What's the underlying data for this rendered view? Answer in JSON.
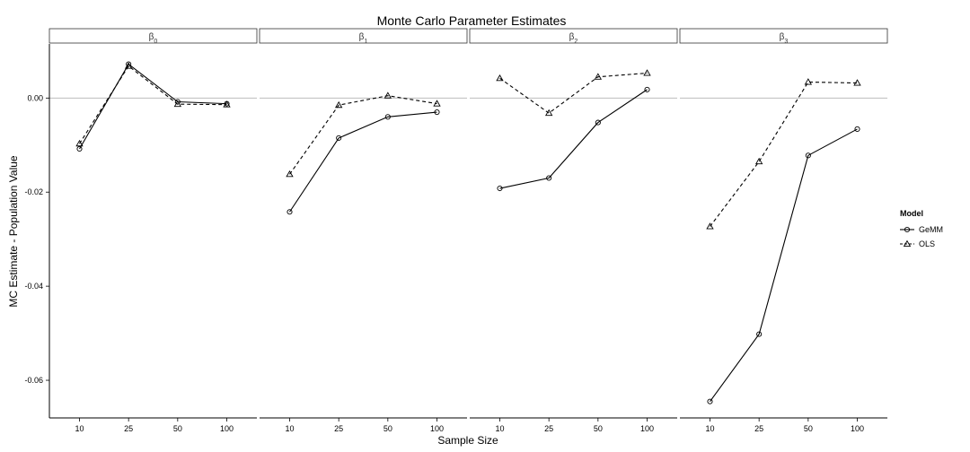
{
  "chart_data": {
    "type": "line",
    "title": "Monte Carlo Parameter Estimates",
    "xlabel": "Sample Size",
    "ylabel": "MC Estimate - Population Value",
    "categories": [
      "10",
      "25",
      "50",
      "100"
    ],
    "ylim": [
      -0.068,
      0.0115
    ],
    "yticks": [
      0.0,
      -0.02,
      -0.04,
      -0.06
    ],
    "ytick_labels": [
      "0.00",
      "-0.02",
      "-0.04",
      "-0.06"
    ],
    "reference_line": 0.0,
    "legend": {
      "title": "Model",
      "position": "right"
    },
    "series_styles": [
      {
        "name": "GeMM",
        "dash": "none",
        "marker": "circle"
      },
      {
        "name": "OLS",
        "dash": "4,3",
        "marker": "triangle"
      }
    ],
    "panels": [
      {
        "label": "β",
        "sub": "0",
        "series": [
          {
            "name": "GeMM",
            "values": [
              -0.0108,
              0.0072,
              -0.0008,
              -0.0012
            ]
          },
          {
            "name": "OLS",
            "values": [
              -0.0097,
              0.0068,
              -0.0013,
              -0.0014
            ]
          }
        ]
      },
      {
        "label": "β",
        "sub": "1",
        "series": [
          {
            "name": "GeMM",
            "values": [
              -0.0242,
              -0.0085,
              -0.004,
              -0.003
            ]
          },
          {
            "name": "OLS",
            "values": [
              -0.0162,
              -0.0015,
              0.0005,
              -0.0012
            ]
          }
        ]
      },
      {
        "label": "β",
        "sub": "2",
        "series": [
          {
            "name": "GeMM",
            "values": [
              -0.0192,
              -0.017,
              -0.0052,
              0.0018
            ]
          },
          {
            "name": "OLS",
            "values": [
              0.0042,
              -0.0032,
              0.0045,
              0.0053
            ]
          }
        ]
      },
      {
        "label": "β",
        "sub": "3",
        "series": [
          {
            "name": "GeMM",
            "values": [
              -0.0645,
              -0.0502,
              -0.0122,
              -0.0066
            ]
          },
          {
            "name": "OLS",
            "values": [
              -0.0273,
              -0.0135,
              0.0034,
              0.0032
            ]
          }
        ]
      }
    ]
  }
}
